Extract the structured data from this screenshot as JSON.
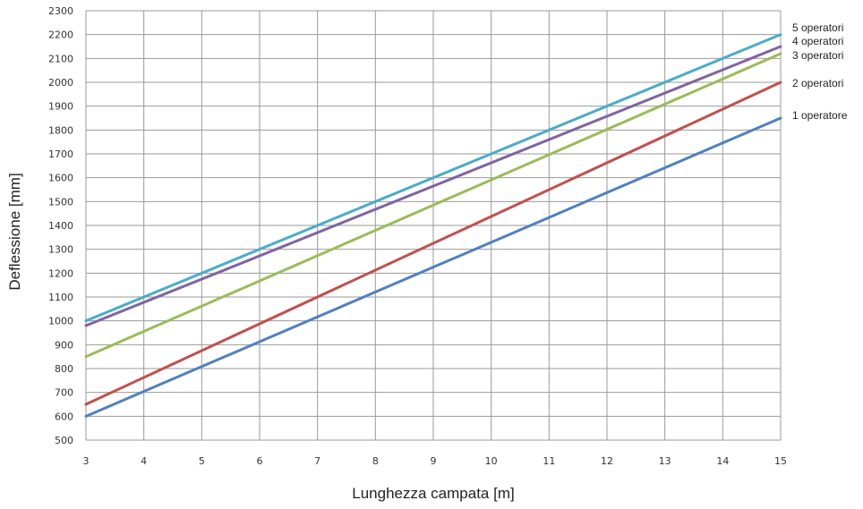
{
  "chart_data": {
    "type": "line",
    "xlabel": "Lunghezza campata [m]",
    "ylabel": "Deflessione [mm]",
    "xlim": [
      3,
      15
    ],
    "ylim": [
      500,
      2300
    ],
    "x_ticks": [
      3,
      4,
      5,
      6,
      7,
      8,
      9,
      10,
      11,
      12,
      13,
      14,
      15
    ],
    "y_ticks": [
      500,
      600,
      700,
      800,
      900,
      1000,
      1100,
      1200,
      1300,
      1400,
      1500,
      1600,
      1700,
      1800,
      1900,
      2000,
      2100,
      2200,
      2300
    ],
    "grid": true,
    "legend": "labels at right end of lines",
    "series": [
      {
        "name": "1 operatore",
        "color": "#4f81bd",
        "x": [
          3,
          15
        ],
        "values": [
          600,
          1850
        ]
      },
      {
        "name": "2 operatori",
        "color": "#c0504d",
        "x": [
          3,
          15
        ],
        "values": [
          650,
          2000
        ]
      },
      {
        "name": "3 operatori",
        "color": "#9bbb59",
        "x": [
          3,
          15
        ],
        "values": [
          850,
          2120
        ]
      },
      {
        "name": "4 operatori",
        "color": "#8064a2",
        "x": [
          3,
          15
        ],
        "values": [
          980,
          2150
        ]
      },
      {
        "name": "5 operatori",
        "color": "#4bacc6",
        "x": [
          3,
          15
        ],
        "values": [
          1000,
          2200
        ]
      }
    ]
  }
}
